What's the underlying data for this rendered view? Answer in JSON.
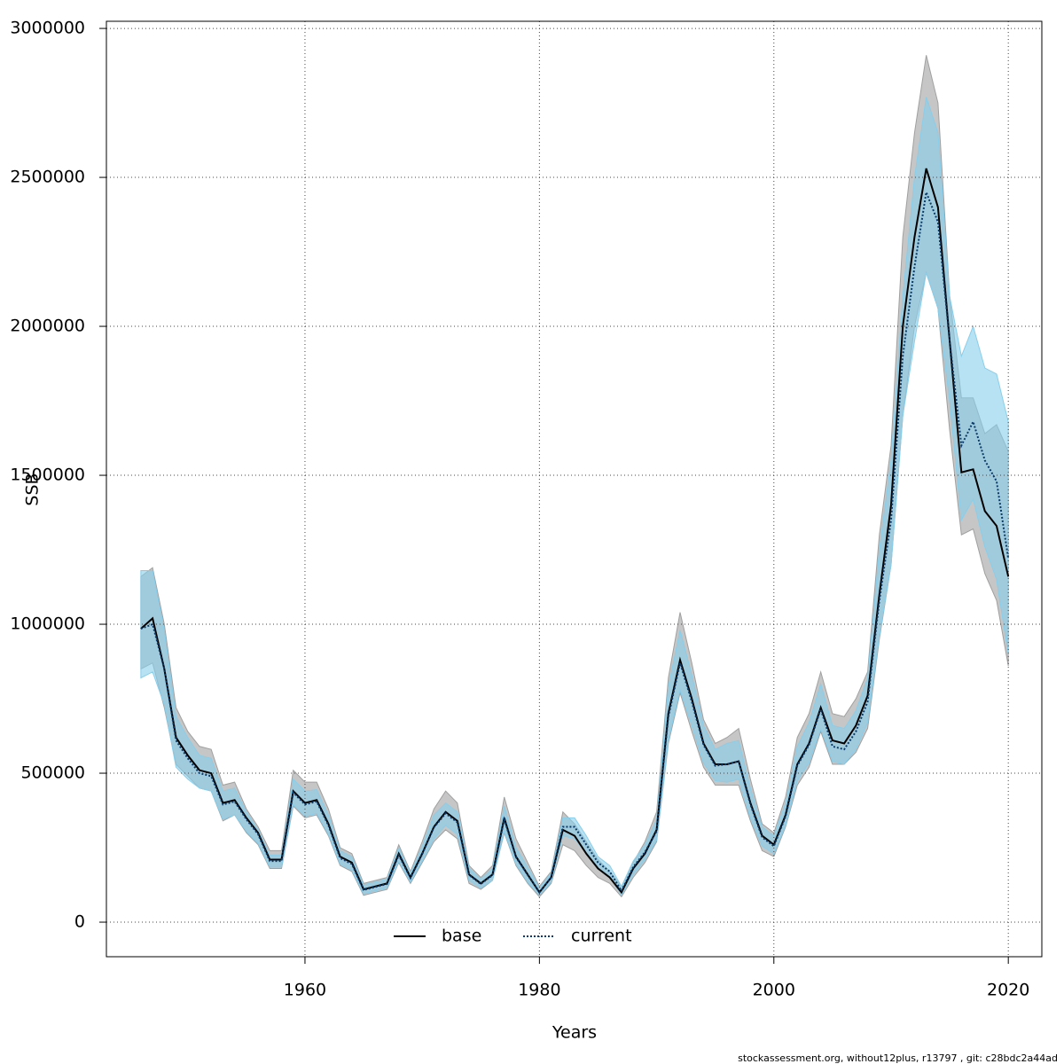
{
  "chart_data": {
    "type": "line",
    "xlabel": "Years",
    "ylabel": "SSB",
    "footer": "stockassessment.org, without12plus, r13797 , git: c28bdc2a44ad",
    "grid": true,
    "legend": "bottom",
    "xlim": [
      1943.06,
      2022.86
    ],
    "ylim": [
      -116000,
      3024000
    ],
    "xticks": [
      1960,
      1980,
      2000,
      2020
    ],
    "yticks": [
      0,
      500000,
      1000000,
      1500000,
      2000000,
      2500000,
      3000000
    ],
    "x": [
      1946,
      1947,
      1948,
      1949,
      1950,
      1951,
      1952,
      1953,
      1954,
      1955,
      1956,
      1957,
      1958,
      1959,
      1960,
      1961,
      1962,
      1963,
      1964,
      1965,
      1966,
      1967,
      1968,
      1969,
      1970,
      1971,
      1972,
      1973,
      1974,
      1975,
      1976,
      1977,
      1978,
      1979,
      1980,
      1981,
      1982,
      1983,
      1984,
      1985,
      1986,
      1987,
      1988,
      1989,
      1990,
      1991,
      1992,
      1993,
      1994,
      1995,
      1996,
      1997,
      1998,
      1999,
      2000,
      2001,
      2002,
      2003,
      2004,
      2005,
      2006,
      2007,
      2008,
      2009,
      2010,
      2011,
      2012,
      2013,
      2014,
      2015,
      2016,
      2017,
      2018,
      2019,
      2020
    ],
    "series": [
      {
        "name": "base",
        "color": "#000000",
        "band_color": "#a0a0a0",
        "dash": false,
        "values": [
          985000,
          1020000,
          850000,
          620000,
          560000,
          510000,
          500000,
          400000,
          410000,
          350000,
          300000,
          210000,
          210000,
          440000,
          400000,
          410000,
          330000,
          220000,
          200000,
          110000,
          120000,
          130000,
          230000,
          150000,
          230000,
          320000,
          370000,
          340000,
          160000,
          130000,
          160000,
          350000,
          220000,
          160000,
          100000,
          150000,
          310000,
          290000,
          230000,
          180000,
          150000,
          100000,
          180000,
          230000,
          310000,
          700000,
          880000,
          750000,
          600000,
          530000,
          530000,
          540000,
          400000,
          290000,
          260000,
          360000,
          530000,
          600000,
          720000,
          610000,
          600000,
          660000,
          760000,
          1100000,
          1400000,
          2000000,
          2300000,
          2530000,
          2400000,
          1950000,
          1510000,
          1520000,
          1380000,
          1330000,
          1160000
        ],
        "upper": [
          1160000,
          1190000,
          1000000,
          720000,
          640000,
          590000,
          580000,
          460000,
          470000,
          380000,
          320000,
          240000,
          240000,
          510000,
          470000,
          470000,
          380000,
          250000,
          230000,
          130000,
          140000,
          150000,
          260000,
          170000,
          270000,
          380000,
          440000,
          400000,
          190000,
          150000,
          190000,
          420000,
          280000,
          200000,
          120000,
          170000,
          370000,
          330000,
          270000,
          210000,
          170000,
          120000,
          200000,
          270000,
          370000,
          820000,
          1040000,
          870000,
          680000,
          600000,
          620000,
          650000,
          480000,
          330000,
          300000,
          420000,
          620000,
          700000,
          840000,
          700000,
          690000,
          750000,
          840000,
          1300000,
          1600000,
          2300000,
          2650000,
          2910000,
          2750000,
          2100000,
          1760000,
          1760000,
          1640000,
          1670000,
          1580000
        ],
        "lower": [
          850000,
          870000,
          720000,
          530000,
          490000,
          450000,
          440000,
          340000,
          360000,
          300000,
          260000,
          180000,
          180000,
          390000,
          350000,
          360000,
          290000,
          190000,
          170000,
          90000,
          100000,
          110000,
          200000,
          130000,
          200000,
          270000,
          310000,
          280000,
          130000,
          110000,
          140000,
          300000,
          190000,
          130000,
          85000,
          130000,
          260000,
          240000,
          190000,
          150000,
          130000,
          85000,
          150000,
          200000,
          270000,
          600000,
          770000,
          640000,
          520000,
          460000,
          460000,
          460000,
          340000,
          240000,
          220000,
          320000,
          460000,
          520000,
          640000,
          530000,
          530000,
          570000,
          650000,
          950000,
          1200000,
          1700000,
          2000000,
          2180000,
          2060000,
          1650000,
          1300000,
          1320000,
          1170000,
          1080000,
          860000
        ]
      },
      {
        "name": "current",
        "color": "#0a3a6b",
        "band_color": "#87ceeb",
        "dash": true,
        "values": [
          985000,
          1000000,
          850000,
          610000,
          550000,
          500000,
          490000,
          395000,
          405000,
          345000,
          295000,
          205000,
          205000,
          435000,
          395000,
          405000,
          325000,
          215000,
          195000,
          108000,
          118000,
          128000,
          225000,
          148000,
          228000,
          318000,
          365000,
          335000,
          158000,
          128000,
          158000,
          345000,
          218000,
          158000,
          100000,
          150000,
          320000,
          320000,
          260000,
          200000,
          170000,
          105000,
          185000,
          235000,
          305000,
          690000,
          870000,
          740000,
          595000,
          525000,
          530000,
          540000,
          395000,
          285000,
          255000,
          355000,
          525000,
          595000,
          715000,
          590000,
          580000,
          640000,
          740000,
          1080000,
          1350000,
          1900000,
          2200000,
          2450000,
          2350000,
          1950000,
          1600000,
          1680000,
          1550000,
          1480000,
          1220000
        ],
        "upper": [
          1180000,
          1180000,
          980000,
          690000,
          620000,
          560000,
          550000,
          440000,
          450000,
          370000,
          310000,
          225000,
          225000,
          480000,
          440000,
          445000,
          360000,
          240000,
          220000,
          125000,
          135000,
          145000,
          250000,
          165000,
          255000,
          360000,
          400000,
          370000,
          180000,
          145000,
          180000,
          390000,
          250000,
          185000,
          115000,
          165000,
          350000,
          350000,
          290000,
          220000,
          190000,
          120000,
          205000,
          260000,
          345000,
          790000,
          980000,
          830000,
          660000,
          580000,
          600000,
          610000,
          450000,
          320000,
          290000,
          400000,
          590000,
          670000,
          800000,
          660000,
          650000,
          710000,
          820000,
          1250000,
          1550000,
          2100000,
          2500000,
          2770000,
          2650000,
          2100000,
          1900000,
          2000000,
          1860000,
          1840000,
          1680000
        ],
        "lower": [
          820000,
          840000,
          730000,
          520000,
          480000,
          450000,
          440000,
          345000,
          360000,
          305000,
          265000,
          185000,
          185000,
          395000,
          355000,
          365000,
          295000,
          195000,
          175000,
          95000,
          105000,
          115000,
          205000,
          135000,
          205000,
          280000,
          325000,
          295000,
          140000,
          115000,
          140000,
          305000,
          195000,
          135000,
          90000,
          135000,
          290000,
          280000,
          230000,
          180000,
          150000,
          92000,
          160000,
          210000,
          275000,
          610000,
          780000,
          660000,
          535000,
          475000,
          470000,
          480000,
          350000,
          255000,
          230000,
          325000,
          475000,
          535000,
          650000,
          540000,
          530000,
          580000,
          670000,
          960000,
          1200000,
          1700000,
          1950000,
          2180000,
          2060000,
          1750000,
          1350000,
          1420000,
          1260000,
          1150000,
          900000
        ]
      }
    ]
  }
}
